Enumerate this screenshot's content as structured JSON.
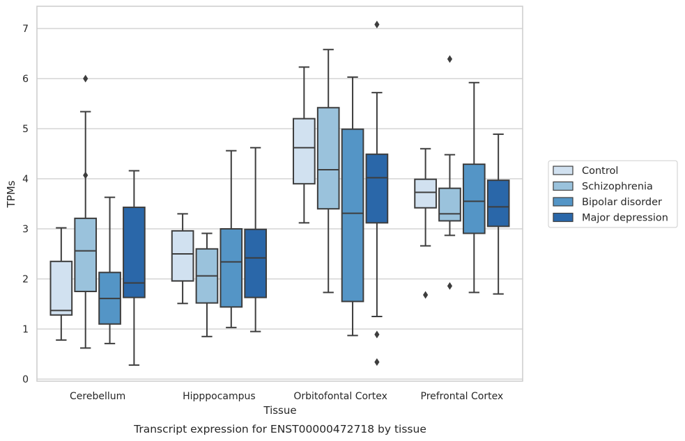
{
  "caption": "Transcript expression for ENST00000472718 by tissue",
  "chart_data": {
    "type": "box",
    "title": "",
    "xlabel": "Tissue",
    "ylabel": "TPMs",
    "ylim": [
      -0.05,
      7.45
    ],
    "yticks": [
      0,
      1,
      2,
      3,
      4,
      5,
      6,
      7
    ],
    "grid": "horizontal",
    "legend_position": "right",
    "categories": [
      "Cerebellum",
      "Hipppocampus",
      "Orbitofontal Cortex",
      "Prefrontal Cortex"
    ],
    "series": [
      {
        "name": "Control",
        "color": "#d1e1f0",
        "boxes": [
          {
            "whislo": 0.78,
            "q1": 1.28,
            "med": 1.37,
            "q3": 2.35,
            "whishi": 3.02,
            "fliers": []
          },
          {
            "whislo": 1.51,
            "q1": 1.96,
            "med": 2.5,
            "q3": 2.96,
            "whishi": 3.3,
            "fliers": []
          },
          {
            "whislo": 3.12,
            "q1": 3.9,
            "med": 4.62,
            "q3": 5.2,
            "whishi": 6.23,
            "fliers": []
          },
          {
            "whislo": 2.66,
            "q1": 3.42,
            "med": 3.73,
            "q3": 3.99,
            "whishi": 4.6,
            "fliers": [
              1.68
            ]
          }
        ]
      },
      {
        "name": "Schizophrenia",
        "color": "#9ac2dc",
        "boxes": [
          {
            "whislo": 0.62,
            "q1": 1.75,
            "med": 2.56,
            "q3": 3.21,
            "whishi": 5.34,
            "fliers": [
              6.0,
              4.07
            ]
          },
          {
            "whislo": 0.85,
            "q1": 1.52,
            "med": 2.06,
            "q3": 2.6,
            "whishi": 2.91,
            "fliers": []
          },
          {
            "whislo": 1.73,
            "q1": 3.4,
            "med": 4.18,
            "q3": 5.42,
            "whishi": 6.58,
            "fliers": []
          },
          {
            "whislo": 2.87,
            "q1": 3.16,
            "med": 3.3,
            "q3": 3.81,
            "whishi": 4.48,
            "fliers": [
              6.39,
              1.86
            ]
          }
        ]
      },
      {
        "name": "Bipolar disorder",
        "color": "#5495c6",
        "boxes": [
          {
            "whislo": 0.71,
            "q1": 1.1,
            "med": 1.61,
            "q3": 2.13,
            "whishi": 3.63,
            "fliers": []
          },
          {
            "whislo": 1.03,
            "q1": 1.44,
            "med": 2.34,
            "q3": 3.0,
            "whishi": 4.56,
            "fliers": []
          },
          {
            "whislo": 0.87,
            "q1": 1.55,
            "med": 3.31,
            "q3": 4.99,
            "whishi": 6.03,
            "fliers": []
          },
          {
            "whislo": 1.73,
            "q1": 2.91,
            "med": 3.55,
            "q3": 4.29,
            "whishi": 5.92,
            "fliers": []
          }
        ]
      },
      {
        "name": "Major depression",
        "color": "#2a67a9",
        "boxes": [
          {
            "whislo": 0.28,
            "q1": 1.63,
            "med": 1.92,
            "q3": 3.43,
            "whishi": 4.16,
            "fliers": []
          },
          {
            "whislo": 0.95,
            "q1": 1.63,
            "med": 2.42,
            "q3": 2.99,
            "whishi": 4.62,
            "fliers": []
          },
          {
            "whislo": 1.25,
            "q1": 3.12,
            "med": 4.02,
            "q3": 4.49,
            "whishi": 5.72,
            "fliers": [
              7.08,
              0.89,
              0.34
            ]
          },
          {
            "whislo": 1.7,
            "q1": 3.05,
            "med": 3.44,
            "q3": 3.97,
            "whishi": 4.89,
            "fliers": []
          }
        ]
      }
    ]
  }
}
